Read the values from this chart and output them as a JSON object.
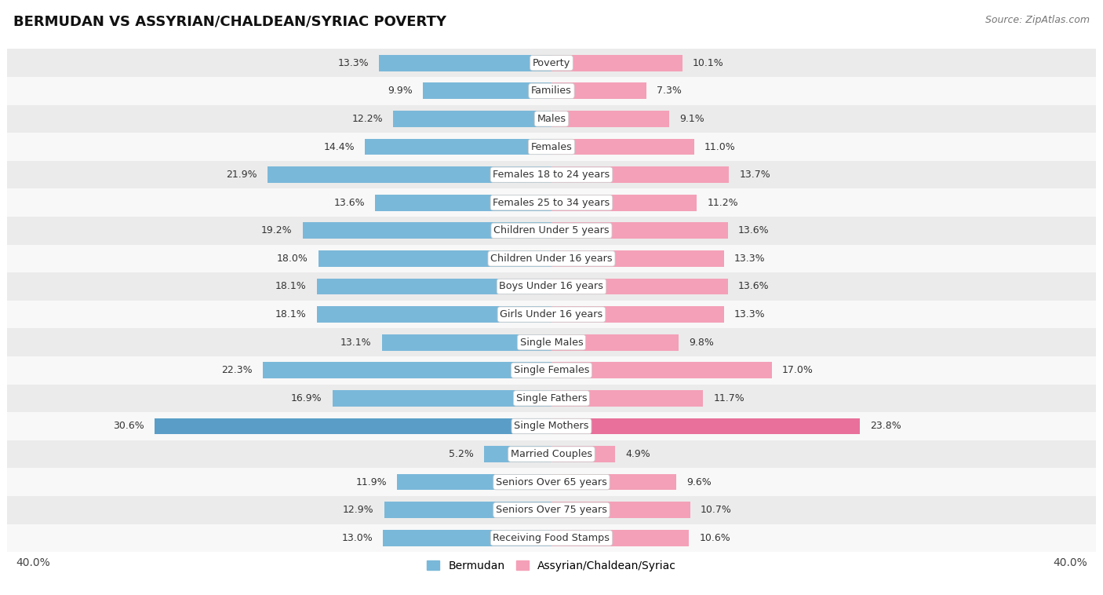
{
  "title": "BERMUDAN VS ASSYRIAN/CHALDEAN/SYRIAC POVERTY",
  "source": "Source: ZipAtlas.com",
  "categories": [
    "Poverty",
    "Families",
    "Males",
    "Females",
    "Females 18 to 24 years",
    "Females 25 to 34 years",
    "Children Under 5 years",
    "Children Under 16 years",
    "Boys Under 16 years",
    "Girls Under 16 years",
    "Single Males",
    "Single Females",
    "Single Fathers",
    "Single Mothers",
    "Married Couples",
    "Seniors Over 65 years",
    "Seniors Over 75 years",
    "Receiving Food Stamps"
  ],
  "bermudan": [
    13.3,
    9.9,
    12.2,
    14.4,
    21.9,
    13.6,
    19.2,
    18.0,
    18.1,
    18.1,
    13.1,
    22.3,
    16.9,
    30.6,
    5.2,
    11.9,
    12.9,
    13.0
  ],
  "assyrian": [
    10.1,
    7.3,
    9.1,
    11.0,
    13.7,
    11.2,
    13.6,
    13.3,
    13.6,
    13.3,
    9.8,
    17.0,
    11.7,
    23.8,
    4.9,
    9.6,
    10.7,
    10.6
  ],
  "bermudan_color": "#7ab8d9",
  "assyrian_color": "#f4a0b8",
  "bermudan_highlight": "#5a9ec8",
  "assyrian_highlight": "#e8709a",
  "row_odd_color": "#ebebeb",
  "row_even_color": "#f8f8f8",
  "xlim": 40.0,
  "bar_height": 0.58,
  "label_fontsize": 9.2,
  "value_fontsize": 9.0,
  "title_fontsize": 13,
  "legend_fontsize": 10,
  "highlight_label": "Single Mothers"
}
